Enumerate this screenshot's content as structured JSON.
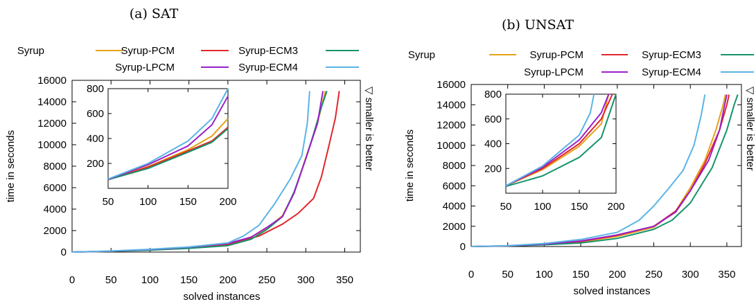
{
  "series_colors": {
    "Syrup": "#e6a117",
    "Syrup-PCM": "#e0262b",
    "Syrup-ECM3": "#14936a",
    "Syrup-LPCM": "#9a1fc9",
    "Syrup-ECM4": "#5ab4e5"
  },
  "annotation_symbol": "▽",
  "annotation_text": "smaller is better",
  "chart_data": [
    {
      "type": "line",
      "caption": "(a) SAT",
      "xlabel": "solved instances",
      "ylabel": "time in seconds",
      "xlim": [
        0,
        370
      ],
      "ylim": [
        0,
        16000
      ],
      "xticks": [
        0,
        50,
        100,
        150,
        200,
        250,
        300,
        350
      ],
      "yticks": [
        0,
        2000,
        4000,
        6000,
        8000,
        10000,
        12000,
        14000,
        16000
      ],
      "legend": [
        "Syrup",
        "Syrup-PCM",
        "Syrup-ECM3",
        "Syrup-LPCM",
        "Syrup-ECM4"
      ],
      "series": [
        {
          "name": "Syrup",
          "points": [
            [
              0,
              0
            ],
            [
              50,
              80
            ],
            [
              100,
              200
            ],
            [
              150,
              380
            ],
            [
              200,
              700
            ],
            [
              230,
              1400
            ],
            [
              250,
              2200
            ],
            [
              270,
              3400
            ],
            [
              285,
              5500
            ],
            [
              300,
              8800
            ],
            [
              315,
              12000
            ],
            [
              325,
              15000
            ]
          ]
        },
        {
          "name": "Syrup-PCM",
          "points": [
            [
              0,
              0
            ],
            [
              50,
              80
            ],
            [
              100,
              200
            ],
            [
              150,
              400
            ],
            [
              200,
              700
            ],
            [
              240,
              1500
            ],
            [
              270,
              2600
            ],
            [
              290,
              3600
            ],
            [
              310,
              5000
            ],
            [
              320,
              7000
            ],
            [
              330,
              10000
            ],
            [
              338,
              12500
            ],
            [
              343,
              15000
            ]
          ]
        },
        {
          "name": "Syrup-ECM3",
          "points": [
            [
              0,
              0
            ],
            [
              50,
              70
            ],
            [
              100,
              180
            ],
            [
              150,
              350
            ],
            [
              200,
              600
            ],
            [
              230,
              1200
            ],
            [
              250,
              2100
            ],
            [
              270,
              3300
            ],
            [
              285,
              5600
            ],
            [
              300,
              8700
            ],
            [
              310,
              11000
            ],
            [
              320,
              13500
            ],
            [
              327,
              15000
            ]
          ]
        },
        {
          "name": "Syrup-LPCM",
          "points": [
            [
              0,
              0
            ],
            [
              50,
              90
            ],
            [
              100,
              230
            ],
            [
              150,
              450
            ],
            [
              200,
              800
            ],
            [
              230,
              1400
            ],
            [
              250,
              2300
            ],
            [
              270,
              3300
            ],
            [
              285,
              5500
            ],
            [
              300,
              8700
            ],
            [
              315,
              12000
            ],
            [
              322,
              15000
            ]
          ]
        },
        {
          "name": "Syrup-ECM4",
          "points": [
            [
              0,
              0
            ],
            [
              50,
              100
            ],
            [
              100,
              260
            ],
            [
              150,
              480
            ],
            [
              200,
              850
            ],
            [
              220,
              1500
            ],
            [
              240,
              2500
            ],
            [
              260,
              4500
            ],
            [
              280,
              6800
            ],
            [
              295,
              9000
            ],
            [
              302,
              12000
            ],
            [
              305,
              15000
            ]
          ]
        }
      ],
      "inset": {
        "xlim": [
          50,
          200
        ],
        "ylim": [
          0,
          800
        ],
        "xticks": [
          50,
          100,
          150,
          200
        ],
        "yticks": [
          200,
          400,
          600,
          800
        ],
        "series": [
          {
            "name": "Syrup",
            "points": [
              [
                50,
                70
              ],
              [
                100,
                175
              ],
              [
                150,
                310
              ],
              [
                180,
                420
              ],
              [
                200,
                560
              ]
            ]
          },
          {
            "name": "Syrup-PCM",
            "points": [
              [
                50,
                70
              ],
              [
                100,
                170
              ],
              [
                150,
                300
              ],
              [
                180,
                380
              ],
              [
                200,
                490
              ]
            ]
          },
          {
            "name": "Syrup-ECM3",
            "points": [
              [
                50,
                70
              ],
              [
                100,
                160
              ],
              [
                150,
                290
              ],
              [
                180,
                370
              ],
              [
                200,
                480
              ]
            ]
          },
          {
            "name": "Syrup-LPCM",
            "points": [
              [
                50,
                72
              ],
              [
                100,
                190
              ],
              [
                150,
                340
              ],
              [
                180,
                510
              ],
              [
                200,
                740
              ]
            ]
          },
          {
            "name": "Syrup-ECM4",
            "points": [
              [
                50,
                75
              ],
              [
                100,
                200
              ],
              [
                150,
                380
              ],
              [
                180,
                560
              ],
              [
                200,
                800
              ]
            ]
          }
        ]
      }
    },
    {
      "type": "line",
      "caption": "(b) UNSAT",
      "xlabel": "solved instances",
      "ylabel": "time in seconds",
      "xlim": [
        0,
        370
      ],
      "ylim": [
        0,
        16000
      ],
      "xticks": [
        0,
        50,
        100,
        150,
        200,
        250,
        300,
        350
      ],
      "yticks": [
        0,
        2000,
        4000,
        6000,
        8000,
        10000,
        12000,
        14000,
        16000
      ],
      "legend": [
        "Syrup",
        "Syrup-PCM",
        "Syrup-ECM3",
        "Syrup-LPCM",
        "Syrup-ECM4"
      ],
      "series": [
        {
          "name": "Syrup",
          "points": [
            [
              0,
              0
            ],
            [
              50,
              60
            ],
            [
              100,
              200
            ],
            [
              150,
              450
            ],
            [
              200,
              1000
            ],
            [
              250,
              1900
            ],
            [
              280,
              3500
            ],
            [
              300,
              5800
            ],
            [
              320,
              8500
            ],
            [
              335,
              11500
            ],
            [
              345,
              14000
            ],
            [
              348,
              15000
            ]
          ]
        },
        {
          "name": "Syrup-PCM",
          "points": [
            [
              0,
              0
            ],
            [
              50,
              60
            ],
            [
              100,
              220
            ],
            [
              150,
              500
            ],
            [
              200,
              1100
            ],
            [
              250,
              2000
            ],
            [
              280,
              3500
            ],
            [
              300,
              5500
            ],
            [
              320,
              8200
            ],
            [
              340,
              11500
            ],
            [
              350,
              14000
            ],
            [
              353,
              15000
            ]
          ]
        },
        {
          "name": "Syrup-ECM3",
          "points": [
            [
              0,
              0
            ],
            [
              50,
              50
            ],
            [
              100,
              170
            ],
            [
              150,
              350
            ],
            [
              200,
              800
            ],
            [
              250,
              1700
            ],
            [
              275,
              2600
            ],
            [
              300,
              4300
            ],
            [
              330,
              7800
            ],
            [
              350,
              11500
            ],
            [
              360,
              14000
            ],
            [
              365,
              15000
            ]
          ]
        },
        {
          "name": "Syrup-LPCM",
          "points": [
            [
              0,
              0
            ],
            [
              50,
              70
            ],
            [
              100,
              240
            ],
            [
              150,
              550
            ],
            [
              200,
              1150
            ],
            [
              250,
              2000
            ],
            [
              280,
              3400
            ],
            [
              300,
              5500
            ],
            [
              325,
              8500
            ],
            [
              340,
              11500
            ],
            [
              347,
              14000
            ],
            [
              350,
              15000
            ]
          ]
        },
        {
          "name": "Syrup-ECM4",
          "points": [
            [
              0,
              0
            ],
            [
              50,
              80
            ],
            [
              100,
              300
            ],
            [
              150,
              700
            ],
            [
              200,
              1400
            ],
            [
              230,
              2600
            ],
            [
              250,
              4000
            ],
            [
              270,
              5700
            ],
            [
              290,
              7500
            ],
            [
              305,
              10000
            ],
            [
              315,
              13000
            ],
            [
              320,
              15000
            ]
          ]
        }
      ],
      "inset": {
        "xlim": [
          50,
          200
        ],
        "ylim": [
          0,
          800
        ],
        "xticks": [
          50,
          100,
          150,
          200
        ],
        "yticks": [
          200,
          400,
          600,
          800
        ],
        "series": [
          {
            "name": "Syrup",
            "points": [
              [
                50,
                60
              ],
              [
                100,
                190
              ],
              [
                150,
                380
              ],
              [
                180,
                560
              ],
              [
                190,
                800
              ]
            ]
          },
          {
            "name": "Syrup-PCM",
            "points": [
              [
                50,
                60
              ],
              [
                100,
                200
              ],
              [
                150,
                400
              ],
              [
                180,
                600
              ],
              [
                195,
                800
              ]
            ]
          },
          {
            "name": "Syrup-ECM3",
            "points": [
              [
                50,
                55
              ],
              [
                100,
                140
              ],
              [
                150,
                290
              ],
              [
                180,
                450
              ],
              [
                200,
                800
              ]
            ]
          },
          {
            "name": "Syrup-LPCM",
            "points": [
              [
                50,
                60
              ],
              [
                100,
                210
              ],
              [
                150,
                430
              ],
              [
                180,
                650
              ],
              [
                190,
                800
              ]
            ]
          },
          {
            "name": "Syrup-ECM4",
            "points": [
              [
                50,
                60
              ],
              [
                100,
                220
              ],
              [
                150,
                470
              ],
              [
                165,
                650
              ],
              [
                170,
                800
              ]
            ]
          }
        ]
      }
    }
  ]
}
